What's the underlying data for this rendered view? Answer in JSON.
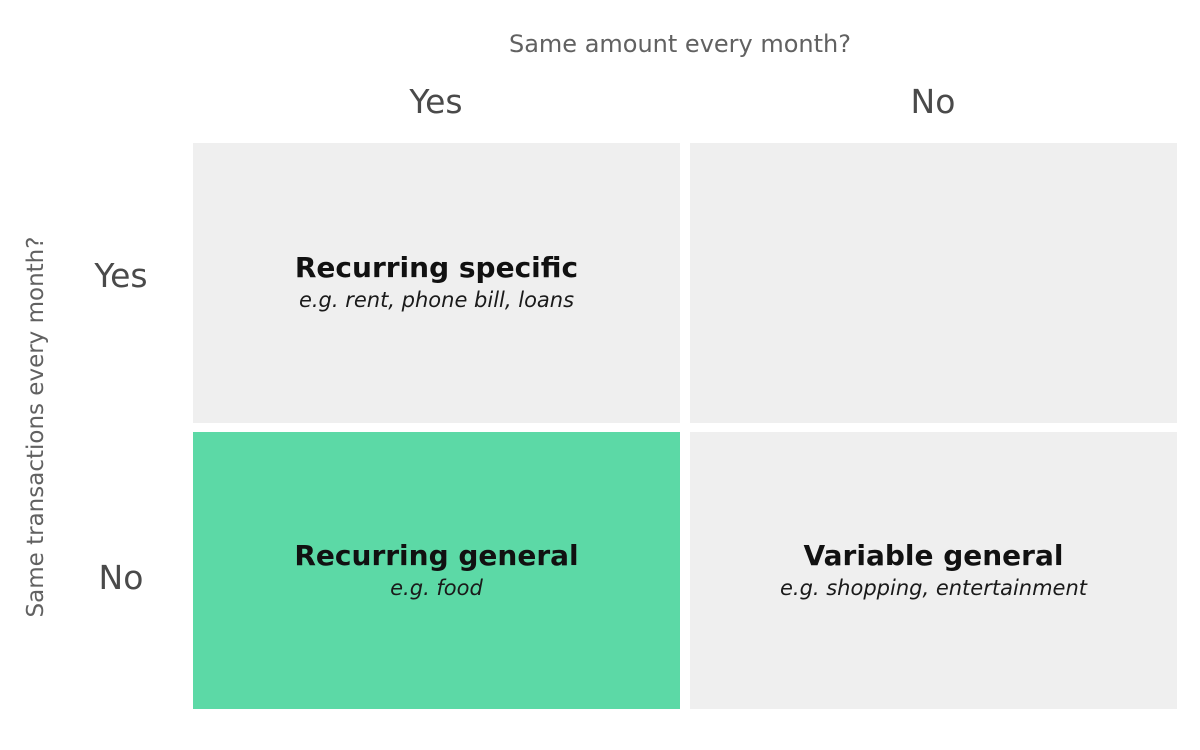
{
  "top_axis": {
    "title": "Same amount every month?",
    "columns": [
      "Yes",
      "No"
    ]
  },
  "left_axis": {
    "title": "Same transactions every month?",
    "rows": [
      "Yes",
      "No"
    ]
  },
  "quadrants": {
    "yes_yes": {
      "title": "Recurring specific",
      "subtitle": "e.g. rent, phone bill, loans",
      "color": "#efefef"
    },
    "yes_no": {
      "title": "",
      "subtitle": "",
      "color": "#efefef"
    },
    "no_yes": {
      "title": "Recurring general",
      "subtitle": "e.g. food",
      "color": "#5cd9a6"
    },
    "no_no": {
      "title": "Variable general",
      "subtitle": "e.g. shopping, entertainment",
      "color": "#efefef"
    }
  },
  "colors": {
    "highlight": "#5cd9a6",
    "cell": "#efefef",
    "label": "#4a4a4a"
  }
}
